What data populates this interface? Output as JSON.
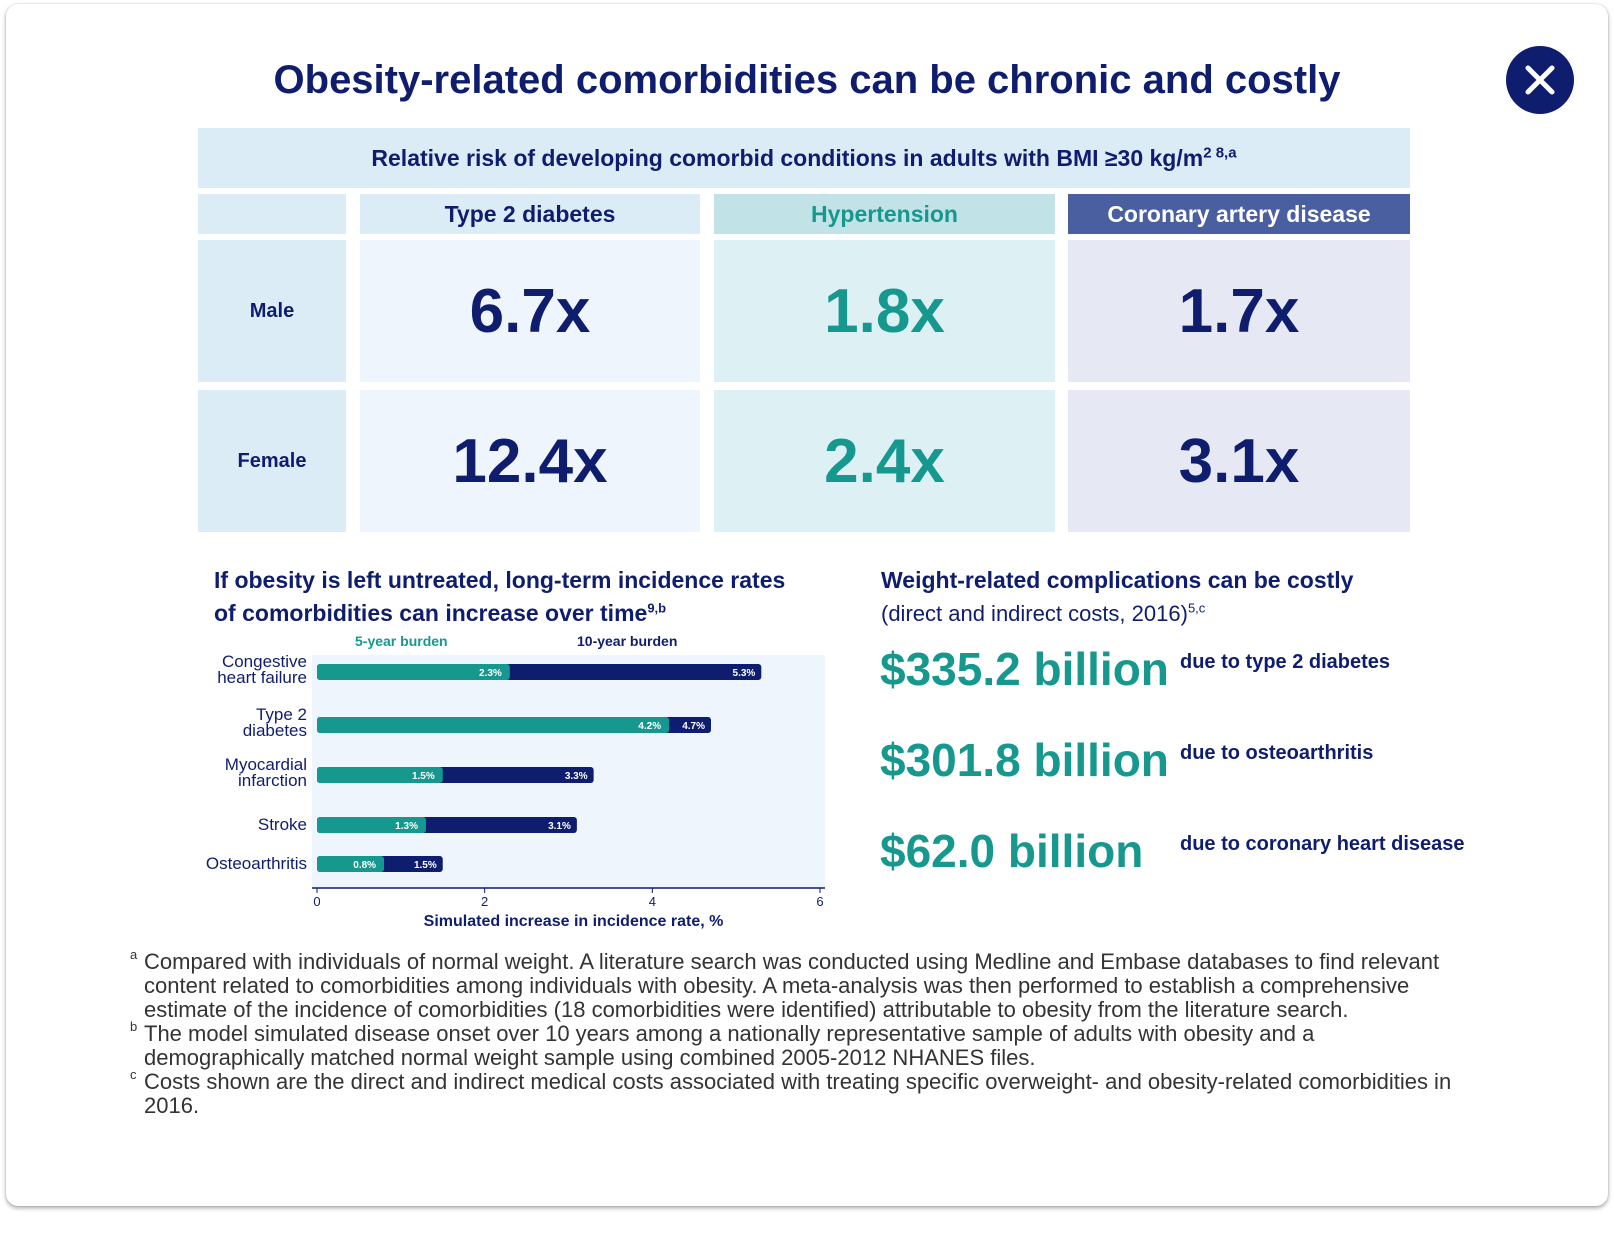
{
  "title": "Obesity-related comorbidities can be chronic and costly",
  "risk_table": {
    "header": "Relative risk of developing comorbid conditions in adults with BMI ≥30 kg/m",
    "header_sup": "2 8,a",
    "columns": [
      "Type 2 diabetes",
      "Hypertension",
      "Coronary artery disease"
    ],
    "rows": [
      {
        "label": "Male",
        "values": [
          "6.7x",
          "1.8x",
          "1.7x"
        ]
      },
      {
        "label": "Female",
        "values": [
          "12.4x",
          "2.4x",
          "3.1x"
        ]
      }
    ]
  },
  "incidence": {
    "title_line1": "If obesity is left untreated, long-term incidence rates",
    "title_line2": "of comorbidities can increase over time",
    "title_sup": "9,b",
    "legend_5yr": "5-year burden",
    "legend_10yr": "10-year burden"
  },
  "chart_data": {
    "type": "bar",
    "orientation": "horizontal",
    "categories": [
      [
        "Congestive",
        "heart failure"
      ],
      [
        "Type 2",
        "diabetes"
      ],
      [
        "Myocardial",
        "infarction"
      ],
      [
        "Stroke"
      ],
      [
        "Osteoarthritis"
      ]
    ],
    "series": [
      {
        "name": "5-year burden",
        "values": [
          2.3,
          4.2,
          1.5,
          1.3,
          0.8
        ],
        "labels": [
          "2.3%",
          "4.2%",
          "1.5%",
          "1.3%",
          "0.8%"
        ]
      },
      {
        "name": "10-year burden",
        "values": [
          5.3,
          4.7,
          3.3,
          3.1,
          1.5
        ],
        "labels": [
          "5.3%",
          "4.7%",
          "3.3%",
          "3.1%",
          "1.5%"
        ]
      }
    ],
    "xlabel": "Simulated increase in incidence rate, %",
    "xlim": [
      0,
      6
    ],
    "xticks": [
      "0",
      "2",
      "4",
      "6"
    ],
    "colors": {
      "five_year": "#17988f",
      "ten_year": "#0f1d6e",
      "plot_bg": "#eef5fc"
    }
  },
  "costs": {
    "title": "Weight-related complications can be costly",
    "subtitle": "(direct and indirect costs, 2016)",
    "subtitle_sup": "5,c",
    "items": [
      {
        "amount": "$335.2 billion",
        "label": "due to type 2 diabetes"
      },
      {
        "amount": "$301.8 billion",
        "label": "due to osteoarthritis"
      },
      {
        "amount": "$62.0 billion",
        "label": "due to coronary heart disease"
      }
    ]
  },
  "footnotes": [
    {
      "mark": "a",
      "text": "Compared with individuals of normal weight. A literature search was conducted using Medline and Embase databases to find relevant content related to comorbidities among individuals with obesity. A meta-analysis was then performed to establish a comprehensive estimate of the incidence of comorbidities (18 comorbidities were identified) attributable to obesity from the literature search."
    },
    {
      "mark": "b",
      "text": "The model simulated disease onset over 10 years among a nationally representative sample of adults with obesity and a demographically matched normal weight sample using combined 2005-2012 NHANES files."
    },
    {
      "mark": "c",
      "text": "Costs shown are the direct and indirect medical costs associated with treating specific overweight- and obesity-related comorbidities in 2016."
    }
  ],
  "colors": {
    "navy": "#0f1d6e",
    "teal": "#17988f",
    "light_blue": "#dbecf7",
    "coronary_header": "#4a5fa0"
  }
}
